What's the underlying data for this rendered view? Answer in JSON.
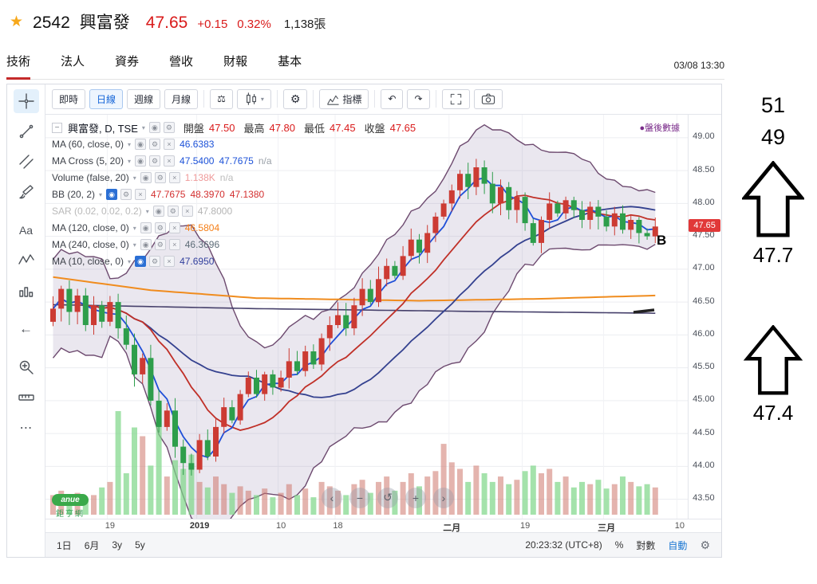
{
  "header": {
    "symbol": "2542",
    "name": "興富發",
    "price": "47.65",
    "change": "+0.15",
    "change_pct": "0.32%",
    "volume": "1,138張"
  },
  "tab_bar": {
    "tabs": [
      "技術",
      "法人",
      "資券",
      "營收",
      "財報",
      "基本"
    ],
    "active_index": 0,
    "datetime": "03/08 13:30"
  },
  "icons": {
    "star": "★",
    "scales": "⚖",
    "gear": "⚙",
    "caret": "▾",
    "undo": "↶",
    "redo": "↷",
    "text_tool": "Aa",
    "arrow_tool": "←",
    "more_tool": "⋯",
    "collapse": "−"
  },
  "chart_toolbar": {
    "buttons": [
      "即時",
      "日線",
      "週線",
      "月線"
    ],
    "active": "日線",
    "indicator_label": "指標"
  },
  "legend": {
    "btn_glyphs": [
      "◉",
      "⚙",
      "×"
    ],
    "main": {
      "title": "興富發, D, TSE",
      "value_color": "#d91a1a",
      "fields": [
        {
          "k": "開盤",
          "v": "47.50"
        },
        {
          "k": "最高",
          "v": "47.80"
        },
        {
          "k": "最低",
          "v": "47.45"
        },
        {
          "k": "收盤",
          "v": "47.65"
        }
      ]
    },
    "rows": [
      {
        "label": "MA (60, close, 0)",
        "values": [
          {
            "t": "46.6383",
            "c": "#1d52d8"
          }
        ]
      },
      {
        "label": "MA Cross (5, 20)",
        "values": [
          {
            "t": "47.5400",
            "c": "#1d52d8"
          },
          {
            "t": "47.7675",
            "c": "#1d52d8"
          },
          {
            "t": "n/a",
            "c": "#9aa0a8"
          }
        ]
      },
      {
        "label": "Volume (false, 20)",
        "values": [
          {
            "t": "1.138K",
            "c": "#ef9a9a"
          },
          {
            "t": "n/a",
            "c": "#bcbcbc"
          }
        ]
      },
      {
        "label": "BB (20, 2)",
        "selected": true,
        "values": [
          {
            "t": "47.7675",
            "c": "#d32f2f"
          },
          {
            "t": "48.3970",
            "c": "#d32f2f"
          },
          {
            "t": "47.1380",
            "c": "#d32f2f"
          }
        ]
      },
      {
        "label": "SAR (0.02, 0.02, 0.2)",
        "disabled": true,
        "values": [
          {
            "t": "47.8000",
            "c": "#b5b5b5"
          }
        ]
      },
      {
        "label": "MA (120, close, 0)",
        "values": [
          {
            "t": "46.5804",
            "c": "#f57f17"
          }
        ]
      },
      {
        "label": "MA (240, close, 0)",
        "values": [
          {
            "t": "46.3696",
            "c": "#5c6b77"
          }
        ]
      },
      {
        "label": "MA (10, close, 0)",
        "selected": true,
        "values": [
          {
            "t": "47.6950",
            "c": "#33419e"
          }
        ]
      }
    ]
  },
  "overlays": {
    "after_hours": "●盤後數據",
    "b_marker": "B",
    "brand_name": "anue",
    "brand_sub": "鉅亨網",
    "nav_glyphs": [
      "‹",
      "−",
      "↺",
      "+",
      "›"
    ]
  },
  "bottom_bar": {
    "ranges": [
      "1日",
      "6月",
      "3y",
      "5y"
    ],
    "clock": "20:23:32 (UTC+8)",
    "percent_label": "%",
    "log_label": "對數",
    "auto_label": "自動"
  },
  "side_annotations": {
    "top_value": "51",
    "second_value": "49",
    "mid_value": "47.7",
    "bottom_value": "47.4"
  },
  "chart_data": {
    "type": "candlestick",
    "title": "興富發, D, TSE",
    "ohlc_summary": {
      "open": 47.5,
      "high": 47.8,
      "low": 47.45,
      "close": 47.65
    },
    "ylim": [
      43.3,
      49.35
    ],
    "grid_step": 0.5,
    "first_open": 46.2,
    "closes": [
      46.4,
      46.7,
      46.35,
      46.6,
      46.15,
      46.45,
      46.2,
      46.5,
      46.1,
      45.85,
      45.4,
      45.65,
      45.0,
      44.6,
      44.85,
      44.3,
      44.05,
      43.95,
      44.4,
      44.15,
      44.6,
      44.9,
      44.7,
      45.1,
      45.35,
      45.1,
      45.4,
      45.2,
      45.35,
      45.6,
      45.45,
      45.75,
      45.55,
      45.95,
      46.15,
      46.3,
      46.1,
      46.45,
      46.7,
      46.5,
      46.85,
      47.05,
      46.9,
      47.2,
      47.45,
      47.25,
      47.55,
      47.8,
      48.0,
      48.2,
      48.45,
      48.25,
      48.55,
      48.3,
      48.0,
      48.25,
      47.9,
      48.1,
      47.7,
      47.4,
      47.75,
      48.0,
      47.85,
      48.05,
      47.9,
      47.75,
      47.95,
      47.8,
      47.65,
      47.85,
      47.6,
      47.75,
      47.55,
      47.5,
      47.65
    ],
    "volumes": [
      18,
      22,
      15,
      20,
      14,
      18,
      25,
      30,
      95,
      38,
      80,
      72,
      45,
      88,
      35,
      50,
      42,
      55,
      30,
      25,
      35,
      28,
      20,
      26,
      22,
      18,
      24,
      16,
      20,
      28,
      18,
      24,
      16,
      30,
      26,
      22,
      18,
      28,
      32,
      20,
      30,
      35,
      22,
      30,
      38,
      26,
      35,
      40,
      65,
      48,
      42,
      30,
      45,
      38,
      30,
      35,
      28,
      32,
      40,
      45,
      38,
      42,
      30,
      35,
      25,
      30,
      28,
      32,
      24,
      28,
      35,
      30,
      26,
      28,
      25
    ],
    "up_color": "#cc3b33",
    "down_color": "#2e9e4b",
    "vol_up_color": "rgba(205,118,108,0.55)",
    "vol_down_color": "rgba(125,214,135,0.7)",
    "band": {
      "window": 15,
      "k": 2.5,
      "fill": "rgba(116,92,146,0.15)",
      "stroke": "#6d4a6f"
    },
    "lines": [
      {
        "name": "ma60",
        "window": 25,
        "color": "#34418f",
        "width": 1.8
      },
      {
        "name": "bb-mid",
        "window": 12,
        "color": "#c03028",
        "width": 1.8
      },
      {
        "name": "ma10",
        "window": 4,
        "color": "#1f4fd8",
        "width": 1.8
      }
    ],
    "flat_lines": [
      {
        "name": "ma120",
        "color": "#f08c1e",
        "width": 2,
        "points": [
          [
            0,
            46.88
          ],
          [
            12,
            46.68
          ],
          [
            25,
            46.56
          ],
          [
            45,
            46.52
          ],
          [
            60,
            46.55
          ],
          [
            74,
            46.6
          ]
        ]
      },
      {
        "name": "ma240",
        "color": "#46406b",
        "width": 1.6,
        "points": [
          [
            0,
            46.46
          ],
          [
            25,
            46.4
          ],
          [
            50,
            46.36
          ],
          [
            74,
            46.33
          ]
        ]
      }
    ],
    "price_labels": [
      "49.00",
      "48.50",
      "48.00",
      "47.50",
      "47.00",
      "46.50",
      "46.00",
      "45.50",
      "45.00",
      "44.50",
      "44.00",
      "43.50"
    ],
    "current_price": 47.65,
    "current_label": "47.65",
    "ticks": [
      {
        "label": "19",
        "i": 7
      },
      {
        "label": "2019",
        "i": 18,
        "bold": true
      },
      {
        "label": "10",
        "i": 28
      },
      {
        "label": "18",
        "i": 35
      },
      {
        "label": "二月",
        "i": 49,
        "bold": true
      },
      {
        "label": "19",
        "i": 58
      },
      {
        "label": "三月",
        "i": 68,
        "bold": true
      },
      {
        "label": "10",
        "i": 77
      }
    ]
  }
}
